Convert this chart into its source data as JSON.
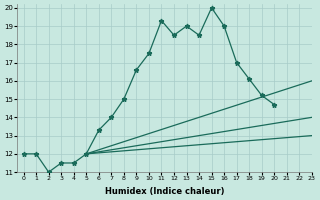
{
  "background_color": "#c8e8e0",
  "grid_color": "#a8ccc8",
  "line_color": "#1a6b5a",
  "xlabel": "Humidex (Indice chaleur)",
  "xlim": [
    -0.5,
    23
  ],
  "ylim": [
    11,
    20.2
  ],
  "yticks": [
    11,
    12,
    13,
    14,
    15,
    16,
    17,
    18,
    19,
    20
  ],
  "xticks": [
    0,
    1,
    2,
    3,
    4,
    5,
    6,
    7,
    8,
    9,
    10,
    11,
    12,
    13,
    14,
    15,
    16,
    17,
    18,
    19,
    20,
    21,
    22,
    23
  ],
  "curve1_x": [
    0,
    1,
    2,
    3,
    4,
    5,
    6,
    7,
    8,
    9,
    10,
    11,
    12,
    13,
    14,
    15,
    16,
    17,
    18,
    19,
    20
  ],
  "curve1_y": [
    12,
    12,
    11,
    11.5,
    11.5,
    12,
    13.3,
    14.0,
    15.0,
    16.6,
    17.5,
    19.3,
    18.5,
    19.0,
    18.5,
    20.0,
    19.0,
    17.0,
    16.1,
    15.2,
    14.7
  ],
  "fan_start_x": 5,
  "fan_start_y": 12.0,
  "fan_lines": [
    {
      "end_x": 23,
      "end_y": 16.0
    },
    {
      "end_x": 23,
      "end_y": 14.0
    },
    {
      "end_x": 23,
      "end_y": 13.0
    }
  ]
}
